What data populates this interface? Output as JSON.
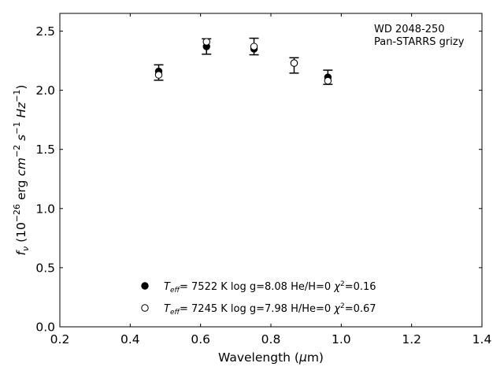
{
  "chart_data": {
    "type": "scatter",
    "xlabel": "Wavelength (μm)",
    "ylabel": "f_ν (10^-26 erg cm^-2 s^-1 Hz^-1)",
    "xlim": [
      0.2,
      1.4
    ],
    "ylim": [
      0.0,
      2.65
    ],
    "xticks": [
      0.2,
      0.4,
      0.6,
      0.8,
      1.0,
      1.2,
      1.4
    ],
    "yticks": [
      0.0,
      0.5,
      1.0,
      1.5,
      2.0,
      2.5
    ],
    "xtick_labels": [
      "0.2",
      "0.4",
      "0.6",
      "0.8",
      "1.0",
      "1.2",
      "1.4"
    ],
    "ytick_labels": [
      "0.0",
      "0.5",
      "1.0",
      "1.5",
      "2.0",
      "2.5"
    ],
    "annotation": [
      "WD 2048-250",
      "Pan-STARRS grizy"
    ],
    "legend_position": "bottom-center",
    "grid": false,
    "observed": {
      "x": [
        0.481,
        0.617,
        0.752,
        0.866,
        0.962
      ],
      "y": [
        2.15,
        2.37,
        2.37,
        2.21,
        2.11
      ],
      "yerr": [
        0.065,
        0.065,
        0.07,
        0.065,
        0.06
      ]
    },
    "series": [
      {
        "marker": "filled-circle",
        "color": "#000000",
        "x": [
          0.481,
          0.617,
          0.752,
          0.866,
          0.962
        ],
        "y": [
          2.16,
          2.37,
          2.35,
          2.23,
          2.11
        ],
        "legend": {
          "teff": "7522 K",
          "logg": "log g=8.08",
          "comp": "He/H=0",
          "chi2": "0.16"
        }
      },
      {
        "marker": "open-circle",
        "color": "#000000",
        "x": [
          0.481,
          0.617,
          0.752,
          0.866,
          0.962
        ],
        "y": [
          2.13,
          2.41,
          2.37,
          2.23,
          2.08
        ],
        "legend": {
          "teff": "7245 K",
          "logg": "log g=7.98",
          "comp": "H/He=0",
          "chi2": "0.67"
        }
      }
    ]
  }
}
